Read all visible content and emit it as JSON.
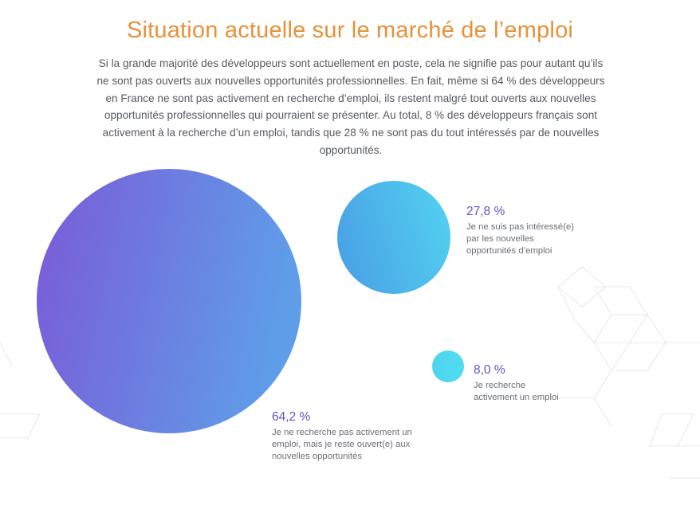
{
  "header": {
    "title": "Situation actuelle sur le marché de l’emploi",
    "intro": "Si la grande majorité des développeurs sont actuellement en poste, cela ne signifie pas pour autant qu’ils ne sont pas ouverts aux nouvelles opportunités professionnelles. En fait, même si 64 % des développeurs en France ne sont pas activement en recherche d’emploi, ils restent malgré tout ouverts aux nouvelles opportunités professionnelles qui pourraient se présenter. Au total, 8 % des développeurs français sont activement à la recherche d’un emploi, tandis que 28 % ne sont pas du tout intéressés par de nouvelles opportunités."
  },
  "colors": {
    "title": "#e8913a",
    "text": "#555a60",
    "percent_label": "#6a53b8",
    "bubble_large_start": "#7b5ad8",
    "bubble_large_end": "#5f9de8",
    "bubble_medium_start": "#4aa2e6",
    "bubble_medium_end": "#52cff0",
    "bubble_small": "#4fd8ef",
    "decor_lines": "#e6e8ec"
  },
  "chart_data": {
    "type": "bubble",
    "title": "",
    "series": [
      {
        "value": 64.2,
        "label": "64,2 %",
        "description": "Je ne recherche pas activement un emploi, mais je reste ouvert(e) aux nouvelles opportunités"
      },
      {
        "value": 27.8,
        "label": "27,8 %",
        "description": "Je ne suis pas intéressé(e) par les nouvelles opportunités d’emploi"
      },
      {
        "value": 8.0,
        "label": "8,0 %",
        "description": "Je recherche activement un emploi"
      }
    ]
  }
}
